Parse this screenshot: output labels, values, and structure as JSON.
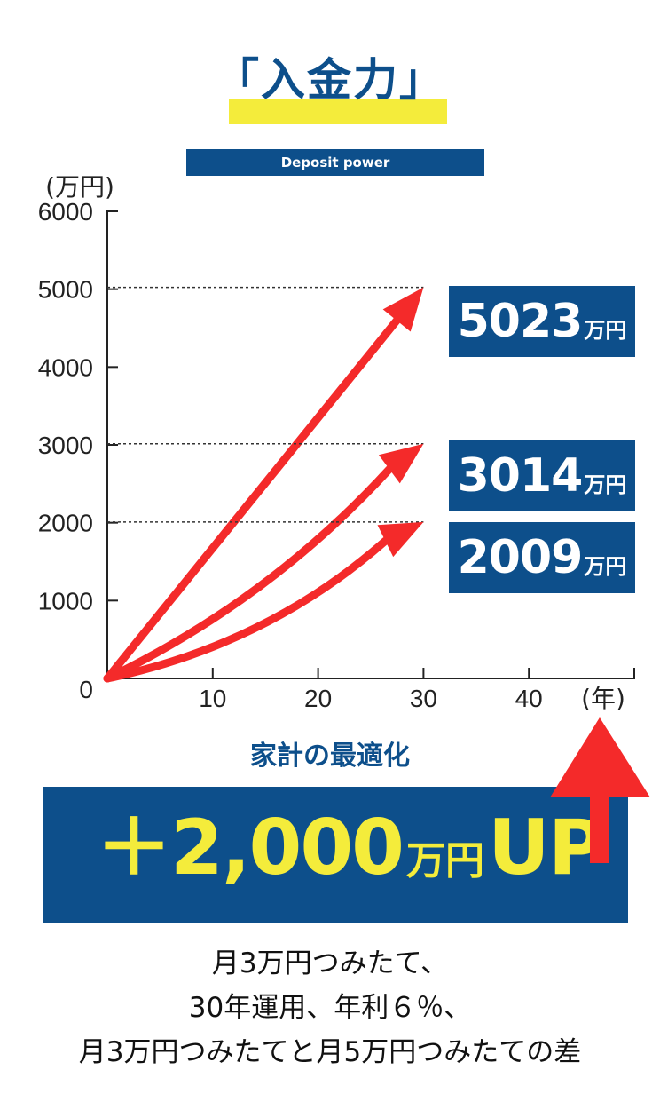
{
  "header": {
    "title": "「入金力」",
    "subtitle": "Deposit power"
  },
  "chart_data": {
    "type": "line",
    "yunit": "(万円)",
    "xunit": "(年)",
    "ylim": [
      0,
      6000
    ],
    "xlim": [
      0,
      50
    ],
    "yticks": [
      0,
      1000,
      2000,
      3000,
      4000,
      5000,
      6000
    ],
    "xticks": [
      10,
      20,
      30,
      40
    ],
    "series": [
      {
        "x": [
          0,
          30
        ],
        "values": [
          0,
          5023
        ]
      },
      {
        "x": [
          0,
          30
        ],
        "values": [
          0,
          3014
        ]
      },
      {
        "x": [
          0,
          30
        ],
        "values": [
          0,
          2009
        ]
      }
    ],
    "labels": [
      {
        "num": "5023",
        "unit": "万円"
      },
      {
        "num": "3014",
        "unit": "万円"
      },
      {
        "num": "2009",
        "unit": "万円"
      }
    ],
    "color": "#f42a2a"
  },
  "caption": "家計の最適化",
  "banner": {
    "prefix": "＋2,000",
    "unit": "万円",
    "suffix": "UP"
  },
  "note": {
    "line1": "月3万円つみたて、",
    "line2": "30年運用、年利６％、",
    "line3": "月3万円つみたてと月5万円つみたての差"
  },
  "colors": {
    "navy": "#0d4f8b",
    "yellow": "#f4ec3b",
    "red": "#f42a2a"
  }
}
